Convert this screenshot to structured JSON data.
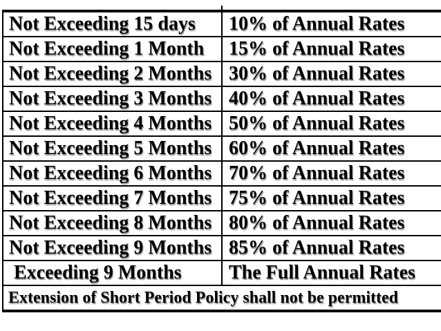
{
  "colors": {
    "background": "#ffffff",
    "border": "#000000",
    "text": "#000000",
    "text_shadow": "#7d7d7d"
  },
  "table": {
    "rows": [
      {
        "period": "Not Exceeding 15 days",
        "rate": "10% of Annual Rates"
      },
      {
        "period": "Not Exceeding 1 Month",
        "rate": "15% of Annual Rates"
      },
      {
        "period": "Not Exceeding 2 Months",
        "rate": "30% of Annual Rates"
      },
      {
        "period": "Not Exceeding 3 Months",
        "rate": "40% of Annual Rates"
      },
      {
        "period": "Not Exceeding 4 Months",
        "rate": "50% of Annual Rates"
      },
      {
        "period": "Not Exceeding 5 Months",
        "rate": "60% of Annual Rates"
      },
      {
        "period": "Not Exceeding 6 Months",
        "rate": "70% of Annual Rates"
      },
      {
        "period": "Not Exceeding 7 Months",
        "rate": "75% of Annual Rates"
      },
      {
        "period": "Not Exceeding 8 Months",
        "rate": "80% of Annual Rates"
      },
      {
        "period": "Not Exceeding 9 Months",
        "rate": "85% of Annual Rates"
      },
      {
        "period": " Exceeding 9 Months",
        "rate": "The Full Annual Rates"
      }
    ],
    "footer": "Extension of Short Period Policy shall not be permitted"
  }
}
